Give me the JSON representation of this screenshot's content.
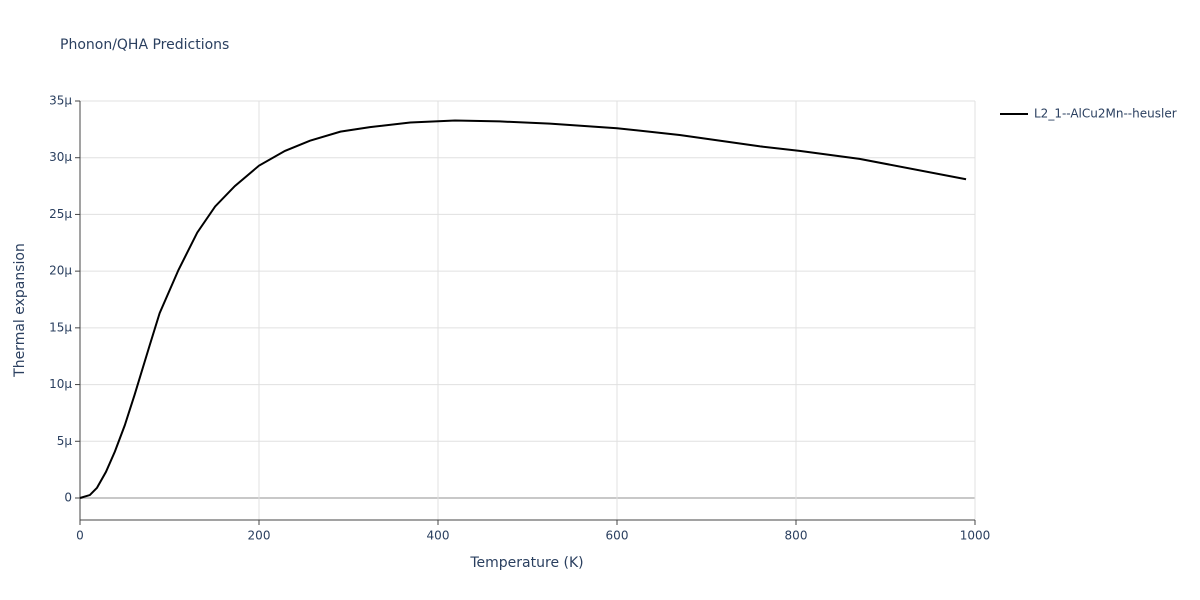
{
  "chart_data": {
    "type": "line",
    "title": "Phonon/QHA Predictions",
    "x_label": "Temperature (K)",
    "y_label": "Thermal expansion",
    "x": [
      0,
      11,
      19,
      29,
      39,
      50,
      61,
      78,
      89,
      110,
      131,
      151,
      173,
      200,
      229,
      257,
      291,
      324,
      369,
      419,
      469,
      525,
      600,
      670,
      760,
      804,
      871,
      990
    ],
    "series": [
      {
        "name": "L2_1--AlCu2Mn--heusler",
        "color": "#000000",
        "values": [
          0,
          0.26,
          0.9,
          2.3,
          4.1,
          6.4,
          9.1,
          13.5,
          16.3,
          20.1,
          23.4,
          25.7,
          27.5,
          29.3,
          30.6,
          31.5,
          32.3,
          32.7,
          33.1,
          33.28,
          33.2,
          33.0,
          32.6,
          32.0,
          31.0,
          30.6,
          29.9,
          28.1
        ]
      }
    ],
    "xlim": [
      0,
      1000
    ],
    "xticks": [
      0,
      200,
      400,
      600,
      800,
      1000
    ],
    "ylim": [
      -1.94,
      35
    ],
    "yticks": [
      0,
      {
        "value": 5,
        "label": "5μ"
      },
      {
        "value": 10,
        "label": "10μ"
      },
      {
        "value": 15,
        "label": "15μ"
      },
      {
        "value": 20,
        "label": "20μ"
      },
      {
        "value": 25,
        "label": "25μ"
      },
      {
        "value": 30,
        "label": "30μ"
      },
      {
        "value": 35,
        "label": "35μ"
      }
    ],
    "grid": true,
    "legend": "right"
  }
}
